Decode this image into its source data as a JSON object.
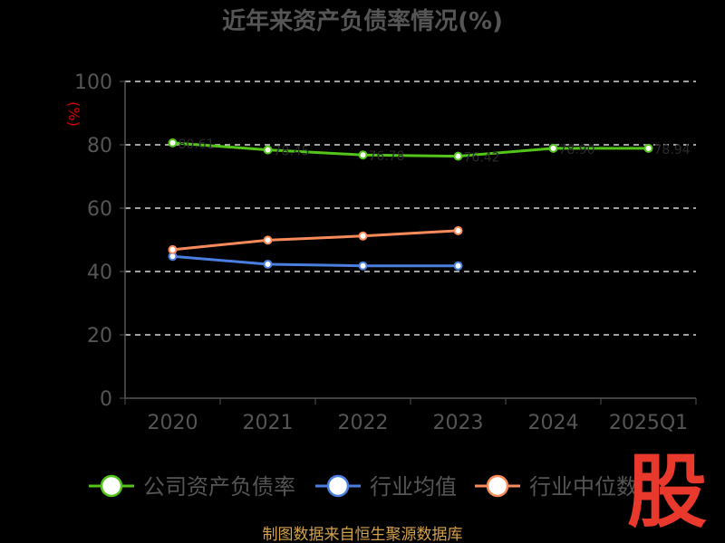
{
  "chart_data": {
    "type": "line",
    "title": "近年来资产负债率情况(%)",
    "ylabel": "(%)",
    "xlabel": "",
    "categories": [
      "2020",
      "2021",
      "2022",
      "2023",
      "2024",
      "2025Q1"
    ],
    "ylim": [
      0,
      100
    ],
    "yticks": [
      0,
      20,
      40,
      60,
      80,
      100
    ],
    "grid": true,
    "legend_position": "bottom",
    "series": [
      {
        "name": "公司资产负债率",
        "color": "#52c41a",
        "values": [
          80.6,
          78.4,
          76.8,
          76.4,
          78.9,
          78.9
        ],
        "labels": [
          "80.61",
          "78.45",
          "76.78",
          "76.42",
          "78.90",
          "78.94"
        ]
      },
      {
        "name": "行业均值",
        "color": "#4a7fe0",
        "values": [
          44.8,
          42.3,
          41.8,
          41.8,
          null,
          null
        ]
      },
      {
        "name": "行业中位数",
        "color": "#f98a5a",
        "values": [
          46.9,
          49.9,
          51.2,
          52.9,
          null,
          null
        ]
      }
    ]
  },
  "legend": {
    "items": [
      {
        "label": "公司资产负债率",
        "color": "#52c41a"
      },
      {
        "label": "行业均值",
        "color": "#4a7fe0"
      },
      {
        "label": "行业中位数",
        "color": "#f98a5a"
      }
    ]
  },
  "source": "制图数据来自恒生聚源数据库",
  "watermark": "股",
  "colors": {
    "background": "#000000",
    "title": "#555555",
    "axis_text": "#555555",
    "axis_line": "#555555",
    "grid": "#ffffff",
    "ylabel": "#d40000",
    "source": "#d4a24a",
    "watermark": "#e8392c",
    "point_fill": "#ffffff"
  }
}
